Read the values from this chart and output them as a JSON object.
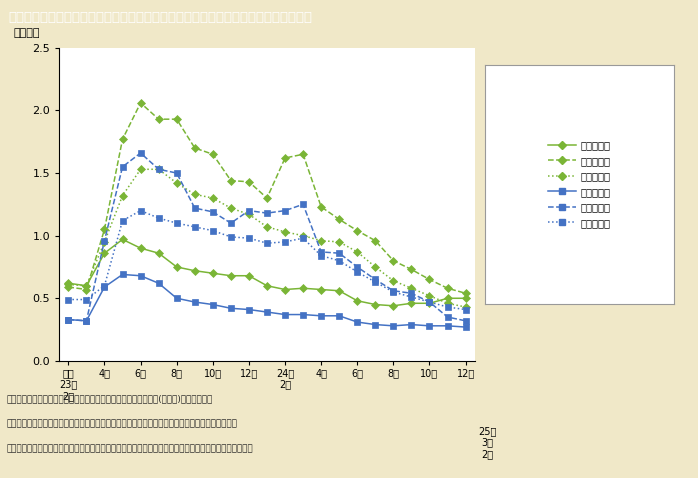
{
  "title": "第１－８－７図　岩手県・宮城県・福島県の雇用保険受給者実人員の推移（男女別）",
  "ylabel": "（万人）",
  "background_color": "#f0e8c8",
  "plot_bg": "#ffffff",
  "header_bg": "#6b6b3a",
  "header_text_color": "#ffffff",
  "ylim": [
    0.0,
    2.5
  ],
  "yticks": [
    0.0,
    0.5,
    1.0,
    1.5,
    2.0,
    2.5
  ],
  "note_lines": [
    "（備考）　１．厚生労働省「被災３県の現在の雇用状況（月次）(男女別)」より作成。",
    "　　　　　２．雇用保険受給者実人員には，個別延長給付，特別延長給付，広域延長給付を含む。",
    "　　　　　３．雇用保険の数値は自発的失業や定年退職，その他特例（休業，一時離職）対象分も含む。"
  ],
  "series": {
    "iwate_female": {
      "label": "岩手県女性",
      "color": "#7ab536",
      "linestyle": "-",
      "marker": "D",
      "markersize": 4,
      "values": [
        0.62,
        0.6,
        0.86,
        0.97,
        0.9,
        0.86,
        0.75,
        0.72,
        0.7,
        0.68,
        0.68,
        0.6,
        0.57,
        0.58,
        0.57,
        0.56,
        0.48,
        0.45,
        0.44,
        0.46,
        0.46,
        0.5,
        0.5
      ]
    },
    "miyagi_female": {
      "label": "宮城県女性",
      "color": "#7ab536",
      "linestyle": "--",
      "marker": "D",
      "markersize": 4,
      "values": [
        0.59,
        0.57,
        1.05,
        1.77,
        2.06,
        1.93,
        1.93,
        1.7,
        1.65,
        1.44,
        1.43,
        1.3,
        1.62,
        1.65,
        1.23,
        1.13,
        1.04,
        0.96,
        0.8,
        0.73,
        0.65,
        0.58,
        0.54
      ]
    },
    "fukushima_female": {
      "label": "福島県女性",
      "color": "#7ab536",
      "linestyle": ":",
      "marker": "D",
      "markersize": 4,
      "values": [
        0.61,
        0.6,
        0.95,
        1.32,
        1.53,
        1.53,
        1.42,
        1.33,
        1.3,
        1.22,
        1.17,
        1.07,
        1.03,
        1.0,
        0.96,
        0.95,
        0.87,
        0.75,
        0.64,
        0.58,
        0.52,
        0.46,
        0.43
      ]
    },
    "iwate_male": {
      "label": "岩手県男性",
      "color": "#4472c4",
      "linestyle": "-",
      "marker": "s",
      "markersize": 4,
      "values": [
        0.33,
        0.32,
        0.59,
        0.69,
        0.68,
        0.62,
        0.5,
        0.47,
        0.45,
        0.42,
        0.41,
        0.39,
        0.37,
        0.37,
        0.36,
        0.36,
        0.31,
        0.29,
        0.28,
        0.29,
        0.28,
        0.28,
        0.27
      ]
    },
    "miyagi_male": {
      "label": "宮城県男性",
      "color": "#4472c4",
      "linestyle": "--",
      "marker": "s",
      "markersize": 4,
      "values": [
        0.33,
        0.32,
        0.96,
        1.55,
        1.66,
        1.53,
        1.5,
        1.22,
        1.19,
        1.1,
        1.2,
        1.18,
        1.2,
        1.25,
        0.87,
        0.86,
        0.75,
        0.65,
        0.56,
        0.54,
        0.47,
        0.35,
        0.32
      ]
    },
    "fukushima_male": {
      "label": "福島県男性",
      "color": "#4472c4",
      "linestyle": ":",
      "marker": "s",
      "markersize": 4,
      "values": [
        0.49,
        0.49,
        0.6,
        1.12,
        1.2,
        1.14,
        1.1,
        1.07,
        1.04,
        0.99,
        0.98,
        0.94,
        0.95,
        0.98,
        0.84,
        0.8,
        0.71,
        0.63,
        0.55,
        0.51,
        0.47,
        0.43,
        0.41
      ]
    }
  }
}
